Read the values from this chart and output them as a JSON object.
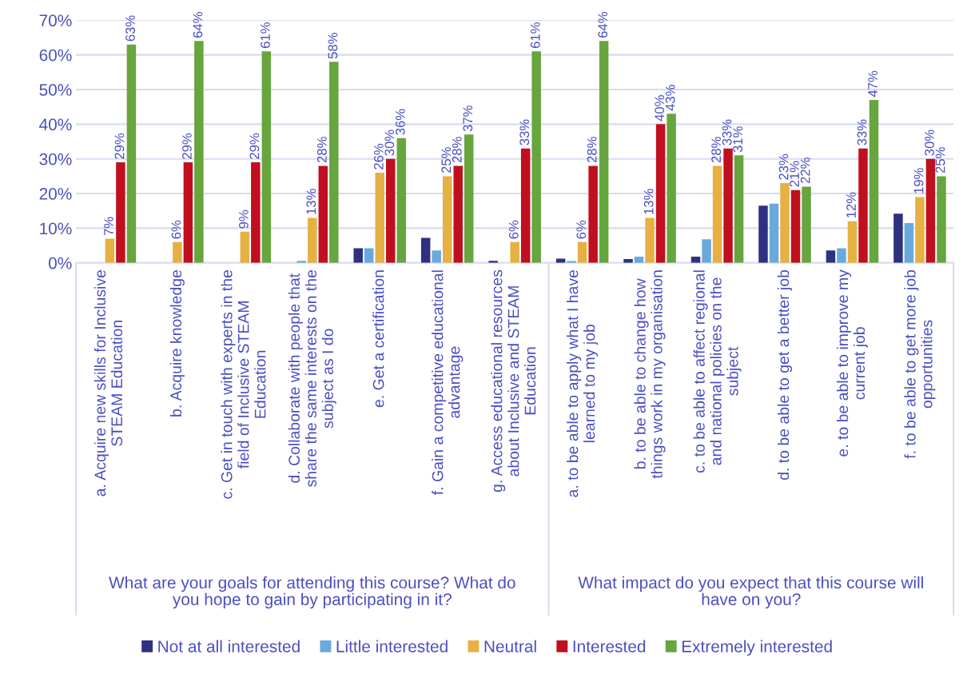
{
  "chart_data": {
    "type": "bar",
    "categories": [
      "a. Acquire new skills for Inclusive\nSTEAM Education",
      "b. Acquire knowledge",
      "c. Get in touch with experts in the\nfield of Inclusive STEAM\nEducation",
      "d. Collaborate with people that\nshare the same interests on the\nsubject as I do",
      "e. Get a certification",
      "f. Gain a competitive educational\nadvantage",
      "g. Access educational resources\nabout Inclusive and STEAM\nEducation",
      "a. to be able to apply what I have\nlearned to my job",
      "b. to be able to change how\nthings work in my organisation",
      "c. to be able to affect regional\nand national policies on the\nsubject",
      "d. to be able to get a better job",
      "e. to be able to improve my\ncurrent job",
      "f. to be able to get more job\nopportunities"
    ],
    "series": [
      {
        "name": "Not at all interested",
        "color": "#2e3180",
        "values": [
          0,
          0,
          0,
          0,
          4.2,
          7.2,
          0.6,
          1.2,
          1.1,
          1.8,
          16.5,
          3.6,
          14.2
        ]
      },
      {
        "name": "Little interested",
        "color": "#6aa9dc",
        "values": [
          0,
          0,
          0,
          0.6,
          4.2,
          3.6,
          0,
          0.5,
          1.8,
          6.8,
          17.1,
          4.2,
          11.5
        ]
      },
      {
        "name": "Neutral",
        "color": "#e6b042",
        "values": [
          7,
          6,
          9,
          13,
          26,
          25,
          6,
          6,
          13,
          28,
          23,
          12,
          19
        ],
        "value_labels": [
          "7%",
          "6%",
          "9%",
          "13%",
          "26%",
          "25%",
          "6%",
          "6%",
          "13%",
          "28%",
          "23%",
          "12%",
          "19%"
        ]
      },
      {
        "name": "Interested",
        "color": "#c00f1e",
        "values": [
          29,
          29,
          29,
          28,
          30,
          28,
          33,
          28,
          40,
          33,
          21,
          33,
          30
        ],
        "value_labels": [
          "29%",
          "29%",
          "29%",
          "28%",
          "30%",
          "28%",
          "33%",
          "28%",
          "40%",
          "33%",
          "21%",
          "33%",
          "30%"
        ]
      },
      {
        "name": "Extremely interested",
        "color": "#67a53e",
        "values": [
          63,
          64,
          61,
          58,
          36,
          37,
          61,
          64,
          43,
          31,
          22,
          47,
          25
        ],
        "value_labels": [
          "63%",
          "64%",
          "61%",
          "58%",
          "36%",
          "37%",
          "61%",
          "64%",
          "43%",
          "31%",
          "22%",
          "47%",
          "25%"
        ]
      }
    ],
    "annotations": [
      "What are your goals for attending this course? What do\nyou hope to gain by participating in it?",
      "What impact do you expect that this course will\nhave on you?"
    ],
    "ylim": [
      0,
      70
    ],
    "yticks": [
      {
        "value": 0,
        "label": "0%"
      },
      {
        "value": 10,
        "label": "10%"
      },
      {
        "value": 20,
        "label": "20%"
      },
      {
        "value": 30,
        "label": "30%"
      },
      {
        "value": 40,
        "label": "40%"
      },
      {
        "value": 50,
        "label": "50%"
      },
      {
        "value": 60,
        "label": "60%"
      },
      {
        "value": 70,
        "label": "70%"
      }
    ],
    "grid": "y",
    "legend": "bottom"
  }
}
